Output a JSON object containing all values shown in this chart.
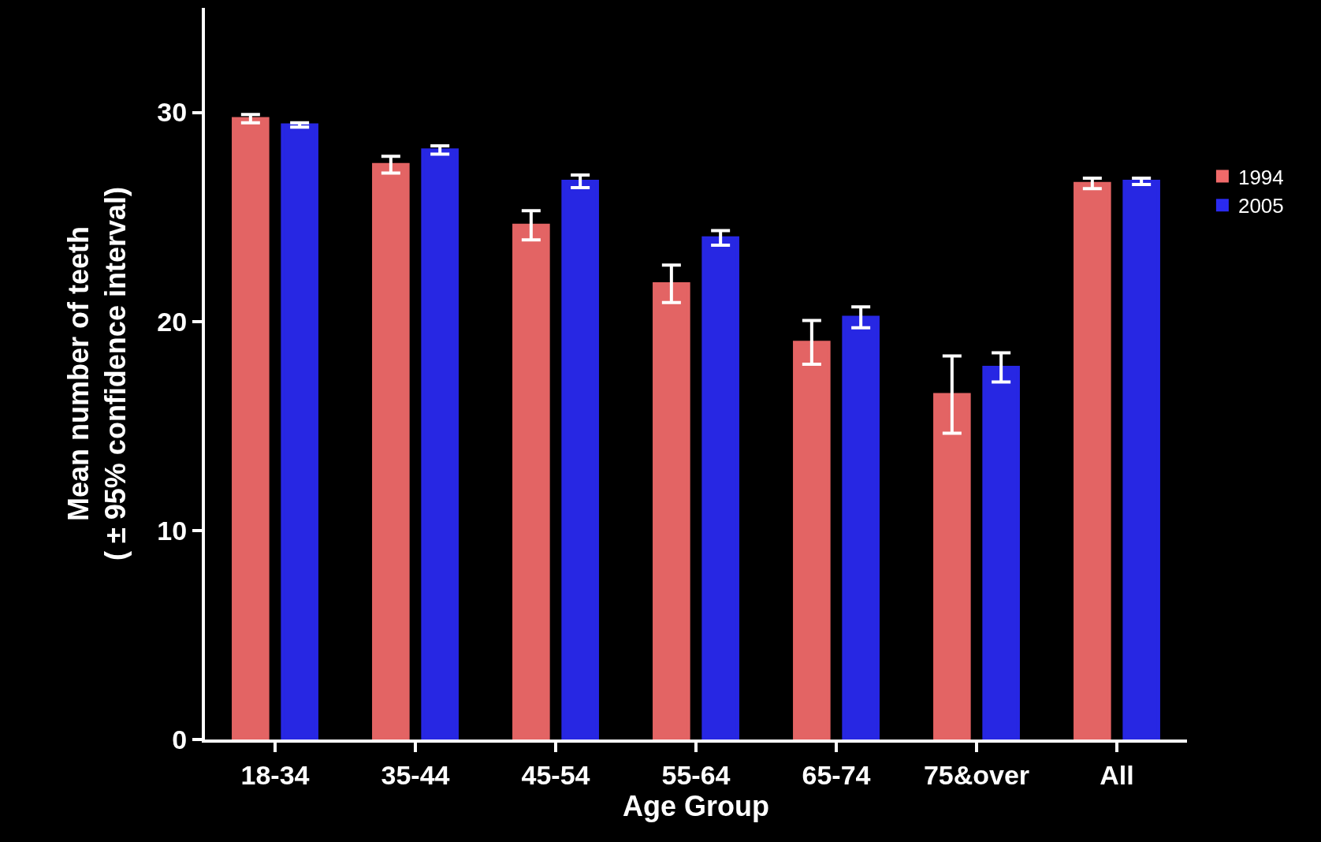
{
  "chart_data": {
    "type": "bar",
    "xlabel": "Age Group",
    "ylabel": "Mean number of teeth\n( ± 95% confidence interval)",
    "categories": [
      "18-34",
      "35-44",
      "45-54",
      "55-64",
      "65-74",
      "75&over",
      "All"
    ],
    "series": [
      {
        "name": "1994",
        "color": "#f06a6a",
        "values": [
          29.7,
          27.5,
          24.6,
          21.8,
          19.0,
          16.5,
          26.6
        ],
        "errors": [
          0.2,
          0.4,
          0.7,
          0.9,
          1.05,
          1.85,
          0.25
        ]
      },
      {
        "name": "2005",
        "color": "#2a2af0",
        "values": [
          29.4,
          28.2,
          26.7,
          24.0,
          20.2,
          17.8,
          26.7
        ],
        "errors": [
          0.1,
          0.2,
          0.3,
          0.35,
          0.5,
          0.7,
          0.15
        ]
      }
    ],
    "ylim": [
      0,
      35
    ],
    "yticks": [
      0,
      10,
      20,
      30
    ],
    "grid": false,
    "legend": "right"
  }
}
